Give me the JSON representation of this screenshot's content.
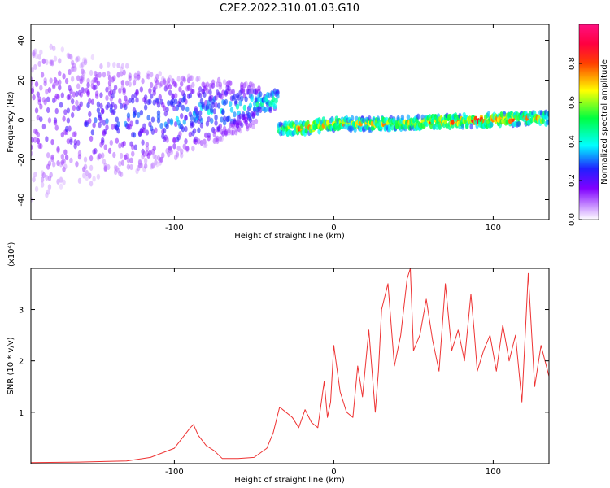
{
  "title": "C2E2.2022.310.01.03.G10",
  "chart_data": [
    {
      "type": "heatmap",
      "xlabel": "Height of straight line (km)",
      "ylabel": "Frequency (Hz)",
      "xlim": [
        -190,
        135
      ],
      "ylim": [
        -50,
        48
      ],
      "x_ticks": [
        -100,
        0,
        100
      ],
      "y_ticks": [
        -40,
        -20,
        0,
        20,
        40
      ],
      "grid": false,
      "colorbar": {
        "label": "Normalized spectral amplitude",
        "range": [
          0.0,
          1.0
        ],
        "ticks": [
          0.0,
          0.2,
          0.4,
          0.6,
          0.8
        ],
        "colormap": [
          "#ffffff",
          "#8000ff",
          "#0000ff",
          "#00ffff",
          "#00ff00",
          "#ffff00",
          "#ff0000",
          "#ff007f"
        ]
      },
      "ridge": [
        {
          "x": -190,
          "y": 0,
          "amplitude": 0.15,
          "spread_hz": 25
        },
        {
          "x": -150,
          "y": 0,
          "amplitude": 0.2,
          "spread_hz": 14
        },
        {
          "x": -120,
          "y": 0,
          "amplitude": 0.3,
          "spread_hz": 7
        },
        {
          "x": -90,
          "y": 3,
          "amplitude": 0.35,
          "spread_hz": 7
        },
        {
          "x": -60,
          "y": 6,
          "amplitude": 0.4,
          "spread_hz": 6
        },
        {
          "x": -35,
          "y": 10,
          "amplitude": 0.45,
          "spread_hz": 5
        },
        {
          "x": -45,
          "y": -5,
          "amplitude": 0.5,
          "spread_hz": 2
        },
        {
          "x": -20,
          "y": -4,
          "amplitude": 0.75,
          "spread_hz": 3
        },
        {
          "x": 0,
          "y": -2,
          "amplitude": 0.65,
          "spread_hz": 3
        },
        {
          "x": 30,
          "y": -2,
          "amplitude": 0.65,
          "spread_hz": 3
        },
        {
          "x": 60,
          "y": -1,
          "amplitude": 0.7,
          "spread_hz": 3
        },
        {
          "x": 100,
          "y": 0,
          "amplitude": 0.8,
          "spread_hz": 3
        },
        {
          "x": 135,
          "y": 1,
          "amplitude": 0.65,
          "spread_hz": 3
        }
      ]
    },
    {
      "type": "line",
      "xlabel": "Height of straight line (km)",
      "ylabel": "SNR (10 * v/v)",
      "y_multiplier": "(x10⁴)",
      "xlim": [
        -190,
        135
      ],
      "ylim": [
        0,
        3.8
      ],
      "x_ticks": [
        -100,
        0,
        100
      ],
      "y_ticks": [
        1,
        2,
        3
      ],
      "grid": false,
      "series": [
        {
          "color": "#ee3333",
          "x": [
            -190,
            -160,
            -130,
            -115,
            -100,
            -95,
            -90,
            -88,
            -85,
            -80,
            -75,
            -70,
            -60,
            -50,
            -42,
            -38,
            -34,
            -30,
            -26,
            -22,
            -18,
            -14,
            -10,
            -6,
            -4,
            -2,
            0,
            4,
            8,
            12,
            15,
            18,
            22,
            26,
            28,
            30,
            34,
            38,
            42,
            46,
            48,
            50,
            54,
            58,
            62,
            66,
            70,
            74,
            78,
            82,
            86,
            88,
            90,
            94,
            98,
            102,
            106,
            110,
            114,
            118,
            122,
            126,
            130,
            135
          ],
          "y": [
            0.02,
            0.03,
            0.05,
            0.12,
            0.3,
            0.5,
            0.7,
            0.76,
            0.55,
            0.35,
            0.25,
            0.1,
            0.1,
            0.12,
            0.3,
            0.6,
            1.1,
            1.0,
            0.9,
            0.7,
            1.05,
            0.8,
            0.7,
            1.6,
            0.9,
            1.2,
            2.3,
            1.4,
            1.0,
            0.9,
            1.9,
            1.3,
            2.6,
            1.0,
            1.8,
            3.0,
            3.5,
            1.9,
            2.5,
            3.6,
            3.8,
            2.2,
            2.5,
            3.2,
            2.4,
            1.8,
            3.5,
            2.2,
            2.6,
            2.0,
            3.3,
            2.6,
            1.8,
            2.2,
            2.5,
            1.8,
            2.7,
            2.0,
            2.5,
            1.2,
            3.7,
            1.5,
            2.3,
            1.7
          ]
        }
      ]
    }
  ]
}
